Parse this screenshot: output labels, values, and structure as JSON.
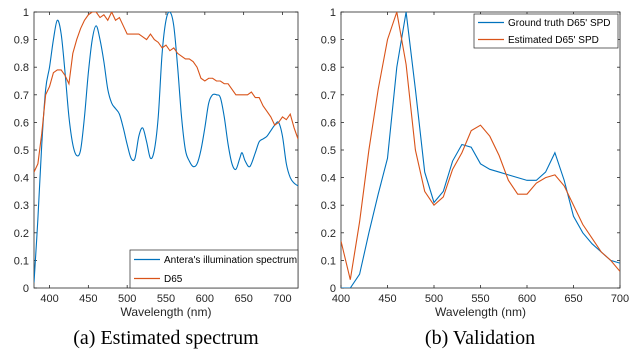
{
  "chart_data": [
    {
      "type": "line",
      "xlabel": "Wavelength (nm)",
      "ylabel": "",
      "xlim": [
        380,
        720
      ],
      "ylim": [
        0,
        1
      ],
      "xticks": [
        400,
        450,
        500,
        550,
        600,
        650,
        700
      ],
      "yticks": [
        0,
        0.1,
        0.2,
        0.3,
        0.4,
        0.5,
        0.6,
        0.7,
        0.8,
        0.9,
        1
      ],
      "ytick_labels": [
        "0",
        "0.1",
        "0.2",
        "0.3",
        "0.4",
        "0.5",
        "0.6",
        "0.7",
        "0.8",
        "0.9",
        "1"
      ],
      "legend_position": "bottom-right",
      "grid": false,
      "caption": "(a) Estimated spectrum",
      "series": [
        {
          "name": "Antera's illumination spectrum",
          "color": "#0072BD",
          "smooth": true,
          "points": [
            [
              380,
              0.02
            ],
            [
              385,
              0.25
            ],
            [
              390,
              0.52
            ],
            [
              395,
              0.72
            ],
            [
              400,
              0.8
            ],
            [
              405,
              0.9
            ],
            [
              410,
              0.97
            ],
            [
              415,
              0.92
            ],
            [
              420,
              0.78
            ],
            [
              425,
              0.62
            ],
            [
              430,
              0.52
            ],
            [
              435,
              0.48
            ],
            [
              440,
              0.5
            ],
            [
              445,
              0.62
            ],
            [
              450,
              0.78
            ],
            [
              455,
              0.9
            ],
            [
              460,
              0.95
            ],
            [
              465,
              0.9
            ],
            [
              470,
              0.82
            ],
            [
              475,
              0.72
            ],
            [
              480,
              0.67
            ],
            [
              485,
              0.65
            ],
            [
              490,
              0.63
            ],
            [
              495,
              0.58
            ],
            [
              500,
              0.52
            ],
            [
              505,
              0.47
            ],
            [
              510,
              0.47
            ],
            [
              515,
              0.55
            ],
            [
              520,
              0.58
            ],
            [
              525,
              0.53
            ],
            [
              530,
              0.47
            ],
            [
              535,
              0.5
            ],
            [
              540,
              0.62
            ],
            [
              545,
              0.85
            ],
            [
              550,
              0.97
            ],
            [
              555,
              1.0
            ],
            [
              560,
              0.95
            ],
            [
              565,
              0.8
            ],
            [
              570,
              0.62
            ],
            [
              575,
              0.5
            ],
            [
              580,
              0.46
            ],
            [
              585,
              0.44
            ],
            [
              590,
              0.45
            ],
            [
              595,
              0.5
            ],
            [
              600,
              0.58
            ],
            [
              605,
              0.67
            ],
            [
              610,
              0.7
            ],
            [
              615,
              0.7
            ],
            [
              620,
              0.69
            ],
            [
              625,
              0.62
            ],
            [
              630,
              0.52
            ],
            [
              635,
              0.45
            ],
            [
              640,
              0.43
            ],
            [
              645,
              0.47
            ],
            [
              648,
              0.49
            ],
            [
              652,
              0.46
            ],
            [
              658,
              0.44
            ],
            [
              665,
              0.49
            ],
            [
              670,
              0.53
            ],
            [
              675,
              0.54
            ],
            [
              680,
              0.55
            ],
            [
              685,
              0.57
            ],
            [
              690,
              0.59
            ],
            [
              695,
              0.6
            ],
            [
              700,
              0.55
            ],
            [
              705,
              0.45
            ],
            [
              710,
              0.4
            ],
            [
              715,
              0.38
            ],
            [
              720,
              0.37
            ]
          ]
        },
        {
          "name": "D65",
          "color": "#D95319",
          "smooth": false,
          "points": [
            [
              380,
              0.42
            ],
            [
              385,
              0.45
            ],
            [
              390,
              0.56
            ],
            [
              395,
              0.7
            ],
            [
              400,
              0.73
            ],
            [
              405,
              0.78
            ],
            [
              410,
              0.79
            ],
            [
              415,
              0.79
            ],
            [
              420,
              0.77
            ],
            [
              425,
              0.74
            ],
            [
              430,
              0.85
            ],
            [
              435,
              0.9
            ],
            [
              440,
              0.94
            ],
            [
              445,
              0.97
            ],
            [
              450,
              0.99
            ],
            [
              455,
              1.0
            ],
            [
              460,
              1.0
            ],
            [
              465,
              0.98
            ],
            [
              470,
              0.99
            ],
            [
              475,
              0.97
            ],
            [
              480,
              1.0
            ],
            [
              485,
              0.97
            ],
            [
              490,
              0.98
            ],
            [
              495,
              0.95
            ],
            [
              500,
              0.92
            ],
            [
              505,
              0.92
            ],
            [
              510,
              0.92
            ],
            [
              515,
              0.92
            ],
            [
              520,
              0.91
            ],
            [
              525,
              0.9
            ],
            [
              530,
              0.92
            ],
            [
              535,
              0.9
            ],
            [
              540,
              0.89
            ],
            [
              545,
              0.87
            ],
            [
              550,
              0.88
            ],
            [
              555,
              0.86
            ],
            [
              560,
              0.87
            ],
            [
              565,
              0.85
            ],
            [
              570,
              0.84
            ],
            [
              575,
              0.83
            ],
            [
              580,
              0.83
            ],
            [
              585,
              0.82
            ],
            [
              590,
              0.8
            ],
            [
              595,
              0.76
            ],
            [
              600,
              0.75
            ],
            [
              605,
              0.76
            ],
            [
              610,
              0.76
            ],
            [
              615,
              0.75
            ],
            [
              620,
              0.75
            ],
            [
              625,
              0.74
            ],
            [
              630,
              0.74
            ],
            [
              635,
              0.72
            ],
            [
              640,
              0.7
            ],
            [
              645,
              0.7
            ],
            [
              650,
              0.7
            ],
            [
              655,
              0.7
            ],
            [
              660,
              0.71
            ],
            [
              665,
              0.69
            ],
            [
              670,
              0.69
            ],
            [
              675,
              0.66
            ],
            [
              680,
              0.64
            ],
            [
              685,
              0.62
            ],
            [
              690,
              0.59
            ],
            [
              695,
              0.6
            ],
            [
              700,
              0.62
            ],
            [
              705,
              0.61
            ],
            [
              710,
              0.63
            ],
            [
              715,
              0.58
            ],
            [
              720,
              0.54
            ]
          ]
        }
      ]
    },
    {
      "type": "line",
      "xlabel": "Wavelength (nm)",
      "ylabel": "",
      "xlim": [
        400,
        700
      ],
      "ylim": [
        0,
        1
      ],
      "xticks": [
        400,
        450,
        500,
        550,
        600,
        650,
        700
      ],
      "yticks": [
        0,
        0.1,
        0.2,
        0.3,
        0.4,
        0.5,
        0.6,
        0.7,
        0.8,
        0.9,
        1
      ],
      "ytick_labels": [
        "0",
        "0.1",
        "0.2",
        "0.3",
        "0.4",
        "0.5",
        "0.6",
        "0.7",
        "0.8",
        "0.9",
        "1"
      ],
      "legend_position": "top-right",
      "grid": false,
      "caption": "(b) Validation",
      "series": [
        {
          "name": "Ground truth D65' SPD",
          "color": "#0072BD",
          "smooth": false,
          "points": [
            [
              400,
              0.0
            ],
            [
              410,
              0.0
            ],
            [
              420,
              0.05
            ],
            [
              430,
              0.2
            ],
            [
              440,
              0.34
            ],
            [
              450,
              0.47
            ],
            [
              460,
              0.8
            ],
            [
              470,
              1.0
            ],
            [
              480,
              0.72
            ],
            [
              490,
              0.42
            ],
            [
              500,
              0.31
            ],
            [
              510,
              0.35
            ],
            [
              520,
              0.46
            ],
            [
              530,
              0.52
            ],
            [
              540,
              0.51
            ],
            [
              550,
              0.45
            ],
            [
              560,
              0.43
            ],
            [
              570,
              0.42
            ],
            [
              580,
              0.41
            ],
            [
              590,
              0.4
            ],
            [
              600,
              0.39
            ],
            [
              610,
              0.39
            ],
            [
              620,
              0.42
            ],
            [
              630,
              0.49
            ],
            [
              640,
              0.39
            ],
            [
              650,
              0.26
            ],
            [
              660,
              0.2
            ],
            [
              670,
              0.16
            ],
            [
              680,
              0.13
            ],
            [
              690,
              0.1
            ],
            [
              700,
              0.09
            ]
          ]
        },
        {
          "name": "Estimated D65' SPD",
          "color": "#D95319",
          "smooth": false,
          "points": [
            [
              400,
              0.17
            ],
            [
              410,
              0.03
            ],
            [
              420,
              0.24
            ],
            [
              430,
              0.5
            ],
            [
              440,
              0.72
            ],
            [
              450,
              0.9
            ],
            [
              460,
              1.0
            ],
            [
              470,
              0.81
            ],
            [
              480,
              0.5
            ],
            [
              490,
              0.35
            ],
            [
              500,
              0.3
            ],
            [
              510,
              0.33
            ],
            [
              520,
              0.43
            ],
            [
              530,
              0.49
            ],
            [
              540,
              0.57
            ],
            [
              550,
              0.59
            ],
            [
              560,
              0.55
            ],
            [
              570,
              0.48
            ],
            [
              580,
              0.39
            ],
            [
              590,
              0.34
            ],
            [
              600,
              0.34
            ],
            [
              610,
              0.38
            ],
            [
              620,
              0.4
            ],
            [
              630,
              0.41
            ],
            [
              640,
              0.37
            ],
            [
              650,
              0.3
            ],
            [
              660,
              0.23
            ],
            [
              670,
              0.18
            ],
            [
              680,
              0.13
            ],
            [
              690,
              0.1
            ],
            [
              700,
              0.06
            ]
          ]
        }
      ]
    }
  ]
}
